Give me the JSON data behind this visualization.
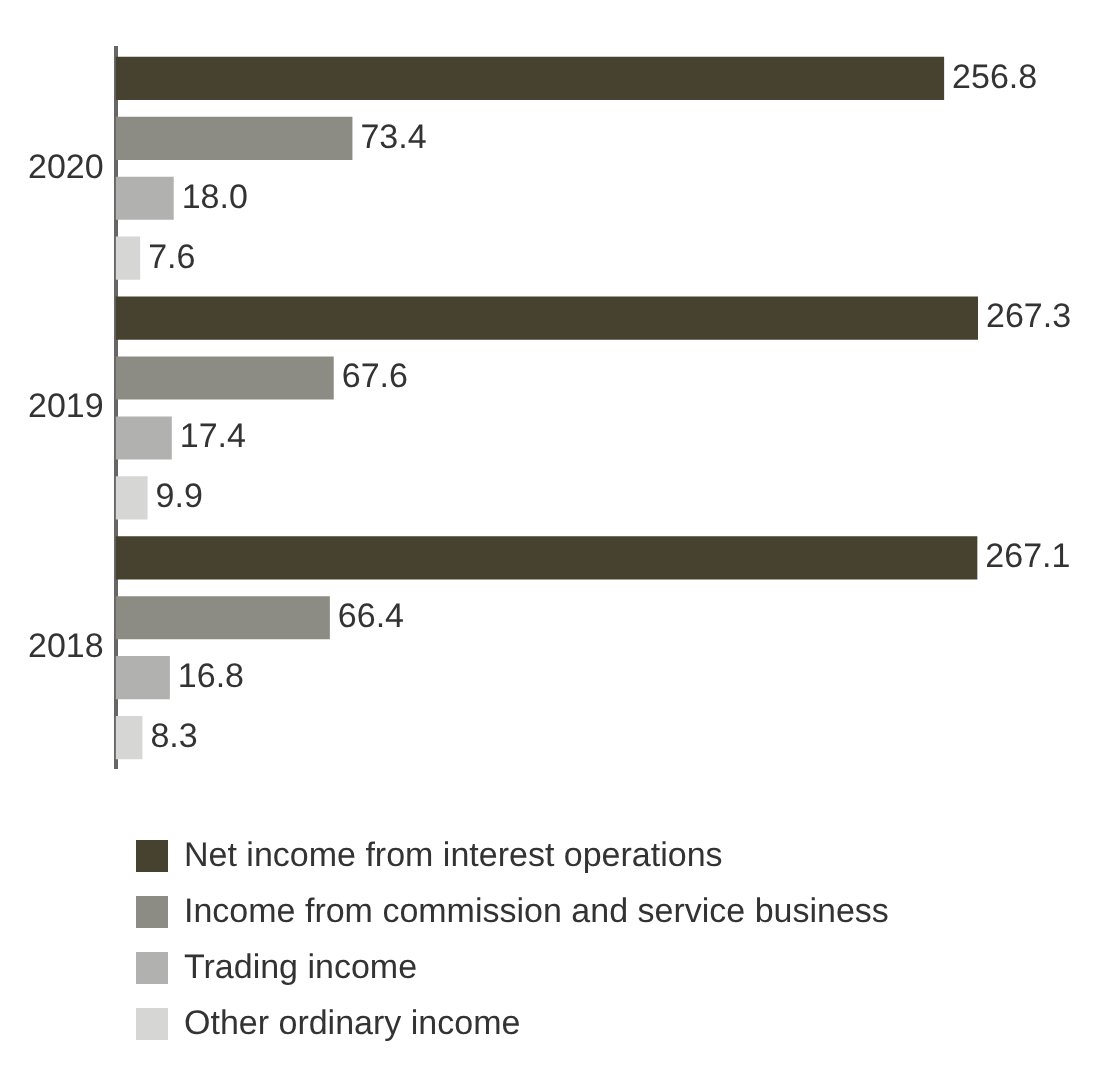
{
  "chart_data": {
    "type": "bar",
    "orientation": "horizontal",
    "categories": [
      "2020",
      "2019",
      "2018"
    ],
    "legend": "bottom",
    "grid": false,
    "series": [
      {
        "name": "Net income from interest operations",
        "color": "#47412f",
        "values": [
          256.8,
          267.3,
          267.1
        ],
        "value_labels": [
          "256.8",
          "267.3",
          "267.1"
        ]
      },
      {
        "name": "Income from commission and service business",
        "color": "#8c8b84",
        "values": [
          73.4,
          67.6,
          66.4
        ],
        "value_labels": [
          "73.4",
          "67.6",
          "66.4"
        ]
      },
      {
        "name": "Trading income",
        "color": "#b1b1b0",
        "values": [
          18.0,
          17.4,
          16.8
        ],
        "value_labels": [
          "18.0",
          "17.4",
          "16.8"
        ]
      },
      {
        "name": "Other ordinary income",
        "color": "#d6d6d5",
        "values": [
          7.6,
          9.9,
          8.3
        ],
        "value_labels": [
          "7.6",
          "9.9",
          "8.3"
        ]
      }
    ]
  }
}
